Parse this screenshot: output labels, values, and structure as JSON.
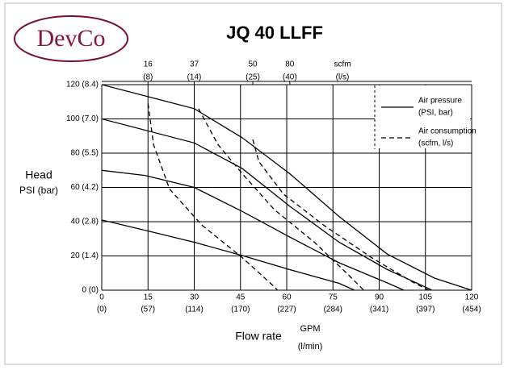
{
  "logo": "DevCo",
  "chart_data": {
    "type": "line",
    "title": "JQ 40 LLFF",
    "ylabel": "Head",
    "ylabel_unit": "PSI (bar)",
    "xlabel": "Flow rate",
    "xlabel_unit": "GPM",
    "xlabel_unit2": "(l/min)",
    "x2label": "scfm",
    "x2label_unit": "(l/s)",
    "xlim": [
      0,
      120
    ],
    "ylim": [
      0,
      120
    ],
    "xticks": [
      0,
      15,
      30,
      45,
      60,
      75,
      90,
      105,
      120
    ],
    "xticks_secondary": [
      {
        "value": 0,
        "label": "(0)"
      },
      {
        "value": 15,
        "label": "(57)"
      },
      {
        "value": 30,
        "label": "(114)"
      },
      {
        "value": 45,
        "label": "(170)"
      },
      {
        "value": 60,
        "label": "(227)"
      },
      {
        "value": 75,
        "label": "(284)"
      },
      {
        "value": 90,
        "label": "(341)"
      },
      {
        "value": 105,
        "label": "(397)"
      },
      {
        "value": 120,
        "label": "(454)"
      }
    ],
    "x2ticks": [
      {
        "value": 15,
        "label": "16"
      },
      {
        "value": 30,
        "label": "37"
      },
      {
        "value": 49,
        "label": "50"
      },
      {
        "value": 61,
        "label": "80"
      }
    ],
    "x2ticks_secondary": [
      {
        "value": 15,
        "label": "(8)"
      },
      {
        "value": 30,
        "label": "(14)"
      },
      {
        "value": 49,
        "label": "(25)"
      },
      {
        "value": 61,
        "label": "(40)"
      }
    ],
    "yticks": [
      {
        "value": 0,
        "label": "0 (0)"
      },
      {
        "value": 20,
        "label": "20 (1.4)"
      },
      {
        "value": 40,
        "label": "40 (2.8)"
      },
      {
        "value": 60,
        "label": "60 (4.2)"
      },
      {
        "value": 80,
        "label": "80 (5.5)"
      },
      {
        "value": 100,
        "label": "100 (7.0)"
      },
      {
        "value": 120,
        "label": "120 (8.4)"
      }
    ],
    "grid": true,
    "legend_position": "upper right",
    "legend": [
      {
        "label": "Air pressure",
        "sublabel": "(PSI, bar)",
        "dashed": false
      },
      {
        "label": "Air consumption",
        "sublabel": "(scfm, l/s)",
        "dashed": true
      }
    ],
    "series": [
      {
        "color": "#000000",
        "dashed": false,
        "x": [
          0,
          30,
          45.6,
          61,
          77,
          92.7,
          108,
          120
        ],
        "values": [
          120,
          106,
          89,
          68,
          43,
          21,
          7,
          0
        ]
      },
      {
        "color": "#000000",
        "dashed": false,
        "x": [
          0,
          30,
          45.6,
          61,
          77,
          92.7,
          106,
          107
        ],
        "values": [
          100,
          86,
          71,
          49,
          28,
          12,
          1,
          0
        ]
      },
      {
        "color": "#000000",
        "dashed": false,
        "x": [
          0,
          14,
          30,
          45.6,
          61,
          77,
          93,
          98
        ],
        "values": [
          70,
          67,
          60,
          46,
          31,
          16,
          4,
          0
        ]
      },
      {
        "color": "#000000",
        "dashed": false,
        "x": [
          0,
          14,
          30,
          46,
          61,
          77,
          82
        ],
        "values": [
          41,
          35,
          28,
          20,
          12,
          4,
          0
        ]
      },
      {
        "color": "#000000",
        "dashed": true,
        "x": [
          15,
          16.8,
          22,
          32.5,
          45.6,
          56,
          57
        ],
        "values": [
          109,
          85,
          59,
          38,
          19,
          2,
          0
        ]
      },
      {
        "color": "#000000",
        "dashed": true,
        "x": [
          31.4,
          37.7,
          45.6,
          56,
          69,
          80,
          85
        ],
        "values": [
          106,
          85,
          68,
          47,
          28,
          9,
          0
        ]
      },
      {
        "color": "#000000",
        "dashed": true,
        "x": [
          49,
          51,
          59,
          72,
          87.5,
          100.6,
          106
        ],
        "values": [
          88,
          75,
          56,
          38,
          19,
          5,
          0
        ]
      }
    ]
  }
}
